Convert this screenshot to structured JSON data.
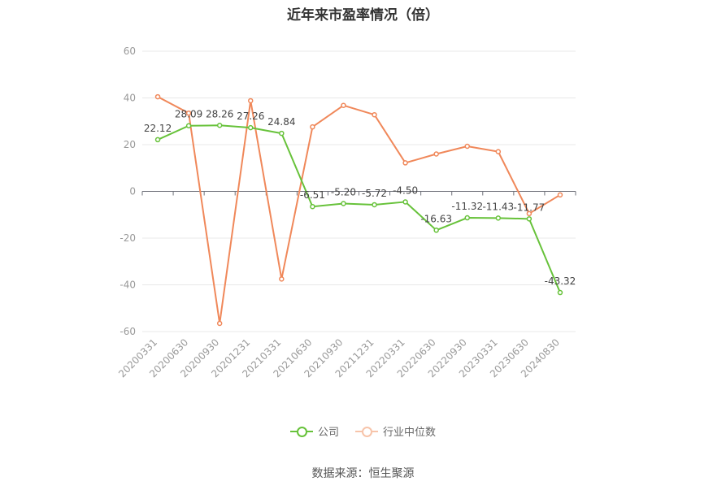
{
  "title": "近年来市盈率情况（倍）",
  "source": "数据来源：恒生聚源",
  "chart_data": {
    "type": "line",
    "categories": [
      "20200331",
      "20200630",
      "20200930",
      "20201231",
      "20210331",
      "20210630",
      "20210930",
      "20211231",
      "20220331",
      "20220630",
      "20220930",
      "20230331",
      "20230630",
      "20240830"
    ],
    "ylim": [
      -60,
      60
    ],
    "yticks": [
      60,
      40,
      20,
      0,
      -20,
      -40,
      -60
    ],
    "grid": true,
    "legend_position": "bottom",
    "series": [
      {
        "name": "公司",
        "color": "#67c23a",
        "values": [
          22.12,
          28.09,
          28.26,
          27.26,
          24.84,
          -6.51,
          -5.2,
          -5.72,
          -4.5,
          -16.63,
          -11.32,
          -11.43,
          -11.77,
          -43.32
        ],
        "labels": [
          "22.12",
          "28.09",
          "28.26",
          "27.26",
          "24.84",
          "-6.51",
          "-5.20",
          "-5.72",
          "-4.50",
          "-16.63",
          "-11.32",
          "-11.43",
          "-11.77",
          "-43.32"
        ]
      },
      {
        "name": "行业中位数",
        "color": "#f0885a",
        "values": [
          40.5,
          33.5,
          -56.5,
          38.8,
          -37.5,
          27.6,
          36.8,
          32.8,
          12.2,
          16.0,
          19.3,
          17.0,
          -9.5,
          -1.5
        ]
      }
    ]
  }
}
